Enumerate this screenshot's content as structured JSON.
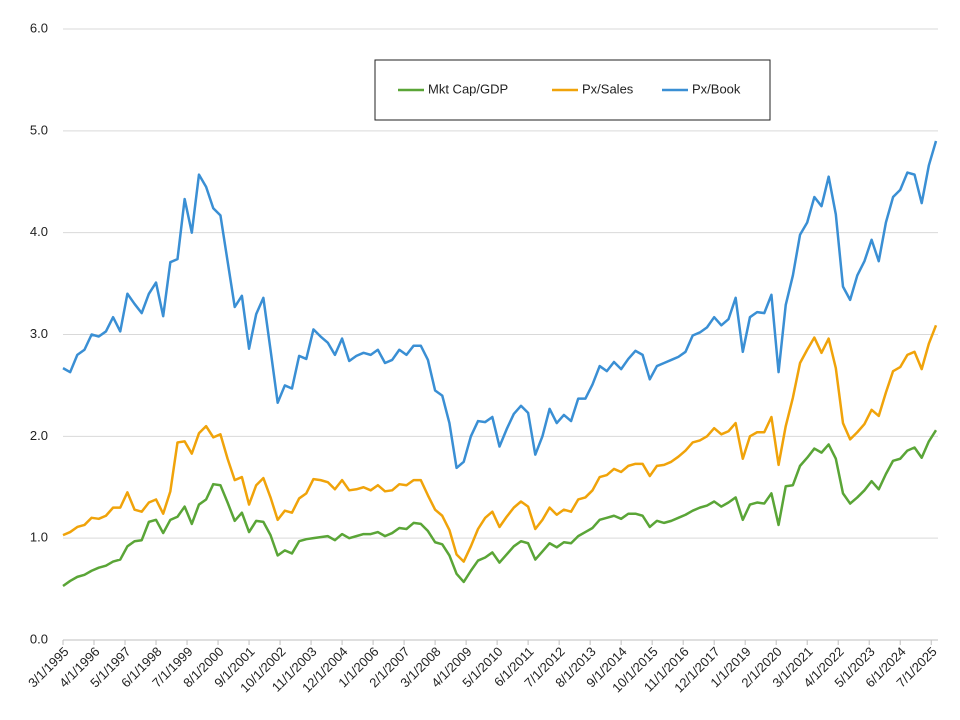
{
  "chart_data": {
    "type": "line",
    "x": [
      "3/1/1995",
      "6/1/1995",
      "9/1/1995",
      "12/1/1995",
      "3/1/1996",
      "6/1/1996",
      "9/1/1996",
      "12/1/1996",
      "3/1/1997",
      "6/1/1997",
      "9/1/1997",
      "12/1/1997",
      "3/1/1998",
      "6/1/1998",
      "9/1/1998",
      "12/1/1998",
      "3/1/1999",
      "6/1/1999",
      "9/1/1999",
      "12/1/1999",
      "3/1/2000",
      "6/1/2000",
      "9/1/2000",
      "12/1/2000",
      "3/1/2001",
      "6/1/2001",
      "9/1/2001",
      "12/1/2001",
      "3/1/2002",
      "6/1/2002",
      "9/1/2002",
      "12/1/2002",
      "3/1/2003",
      "6/1/2003",
      "9/1/2003",
      "12/1/2003",
      "3/1/2004",
      "6/1/2004",
      "9/1/2004",
      "12/1/2004",
      "3/1/2005",
      "6/1/2005",
      "9/1/2005",
      "12/1/2005",
      "3/1/2006",
      "6/1/2006",
      "9/1/2006",
      "12/1/2006",
      "3/1/2007",
      "6/1/2007",
      "9/1/2007",
      "12/1/2007",
      "3/1/2008",
      "6/1/2008",
      "9/1/2008",
      "12/1/2008",
      "3/1/2009",
      "6/1/2009",
      "9/1/2009",
      "12/1/2009",
      "3/1/2010",
      "6/1/2010",
      "9/1/2010",
      "12/1/2010",
      "3/1/2011",
      "6/1/2011",
      "9/1/2011",
      "12/1/2011",
      "3/1/2012",
      "6/1/2012",
      "9/1/2012",
      "12/1/2012",
      "3/1/2013",
      "6/1/2013",
      "9/1/2013",
      "12/1/2013",
      "3/1/2014",
      "6/1/2014",
      "9/1/2014",
      "12/1/2014",
      "3/1/2015",
      "6/1/2015",
      "9/1/2015",
      "12/1/2015",
      "3/1/2016",
      "6/1/2016",
      "9/1/2016",
      "12/1/2016",
      "3/1/2017",
      "6/1/2017",
      "9/1/2017",
      "12/1/2017",
      "3/1/2018",
      "6/1/2018",
      "9/1/2018",
      "12/1/2018",
      "3/1/2019",
      "6/1/2019",
      "9/1/2019",
      "12/1/2019",
      "3/1/2020",
      "6/1/2020",
      "9/1/2020",
      "12/1/2020",
      "3/1/2021",
      "6/1/2021",
      "9/1/2021",
      "12/1/2021",
      "3/1/2022",
      "6/1/2022",
      "9/1/2022",
      "12/1/2022",
      "3/1/2023",
      "6/1/2023",
      "9/1/2023",
      "12/1/2023",
      "3/1/2024",
      "6/1/2024",
      "9/1/2024",
      "12/1/2024",
      "3/1/2025",
      "6/1/2025",
      "9/1/2025"
    ],
    "series": [
      {
        "name": "Mkt Cap/GDP",
        "color": "#5aa537",
        "values": [
          0.53,
          0.58,
          0.62,
          0.64,
          0.68,
          0.71,
          0.73,
          0.77,
          0.79,
          0.92,
          0.97,
          0.98,
          1.16,
          1.18,
          1.05,
          1.18,
          1.21,
          1.31,
          1.14,
          1.33,
          1.38,
          1.53,
          1.52,
          1.35,
          1.17,
          1.25,
          1.06,
          1.17,
          1.16,
          1.03,
          0.83,
          0.88,
          0.85,
          0.97,
          0.99,
          1.0,
          1.01,
          1.02,
          0.98,
          1.04,
          1.0,
          1.02,
          1.04,
          1.04,
          1.06,
          1.02,
          1.05,
          1.1,
          1.09,
          1.15,
          1.14,
          1.07,
          0.96,
          0.94,
          0.83,
          0.65,
          0.57,
          0.68,
          0.78,
          0.81,
          0.86,
          0.76,
          0.84,
          0.92,
          0.97,
          0.95,
          0.79,
          0.87,
          0.95,
          0.91,
          0.96,
          0.95,
          1.02,
          1.06,
          1.1,
          1.18,
          1.2,
          1.22,
          1.19,
          1.24,
          1.24,
          1.22,
          1.11,
          1.17,
          1.15,
          1.17,
          1.2,
          1.23,
          1.27,
          1.3,
          1.32,
          1.36,
          1.31,
          1.35,
          1.4,
          1.18,
          1.33,
          1.35,
          1.34,
          1.44,
          1.13,
          1.51,
          1.52,
          1.71,
          1.79,
          1.88,
          1.84,
          1.92,
          1.78,
          1.44,
          1.34,
          1.4,
          1.47,
          1.56,
          1.48,
          1.63,
          1.76,
          1.78,
          1.86,
          1.89,
          1.79,
          1.95,
          2.06
        ]
      },
      {
        "name": "Px/Sales",
        "color": "#f0a30a",
        "values": [
          1.03,
          1.06,
          1.11,
          1.13,
          1.2,
          1.19,
          1.22,
          1.3,
          1.3,
          1.45,
          1.28,
          1.26,
          1.35,
          1.38,
          1.24,
          1.46,
          1.94,
          1.95,
          1.83,
          2.03,
          2.1,
          1.99,
          2.02,
          1.78,
          1.57,
          1.6,
          1.33,
          1.52,
          1.59,
          1.4,
          1.18,
          1.27,
          1.25,
          1.39,
          1.44,
          1.58,
          1.57,
          1.55,
          1.48,
          1.57,
          1.47,
          1.48,
          1.5,
          1.47,
          1.52,
          1.46,
          1.47,
          1.53,
          1.52,
          1.57,
          1.57,
          1.42,
          1.28,
          1.22,
          1.08,
          0.84,
          0.77,
          0.92,
          1.09,
          1.2,
          1.26,
          1.11,
          1.21,
          1.3,
          1.36,
          1.31,
          1.09,
          1.18,
          1.3,
          1.23,
          1.28,
          1.26,
          1.38,
          1.4,
          1.47,
          1.6,
          1.62,
          1.68,
          1.65,
          1.71,
          1.73,
          1.73,
          1.61,
          1.71,
          1.72,
          1.75,
          1.8,
          1.86,
          1.94,
          1.96,
          2.0,
          2.08,
          2.02,
          2.05,
          2.13,
          1.78,
          2.0,
          2.04,
          2.04,
          2.19,
          1.72,
          2.1,
          2.38,
          2.72,
          2.85,
          2.97,
          2.82,
          2.96,
          2.67,
          2.13,
          1.97,
          2.04,
          2.12,
          2.26,
          2.2,
          2.43,
          2.64,
          2.68,
          2.8,
          2.83,
          2.66,
          2.91,
          3.09
        ]
      },
      {
        "name": "Px/Book",
        "color": "#3a8fd4",
        "values": [
          2.67,
          2.63,
          2.8,
          2.85,
          3.0,
          2.98,
          3.03,
          3.17,
          3.03,
          3.4,
          3.3,
          3.21,
          3.4,
          3.51,
          3.18,
          3.71,
          3.74,
          4.33,
          4.0,
          4.57,
          4.45,
          4.24,
          4.17,
          3.72,
          3.27,
          3.38,
          2.86,
          3.2,
          3.36,
          2.85,
          2.33,
          2.5,
          2.47,
          2.79,
          2.76,
          3.05,
          2.98,
          2.92,
          2.8,
          2.96,
          2.74,
          2.79,
          2.82,
          2.8,
          2.85,
          2.72,
          2.75,
          2.85,
          2.8,
          2.89,
          2.89,
          2.75,
          2.45,
          2.4,
          2.13,
          1.69,
          1.75,
          2.0,
          2.15,
          2.14,
          2.19,
          1.9,
          2.07,
          2.22,
          2.3,
          2.23,
          1.82,
          2.0,
          2.27,
          2.13,
          2.21,
          2.15,
          2.37,
          2.37,
          2.51,
          2.69,
          2.64,
          2.73,
          2.66,
          2.76,
          2.84,
          2.8,
          2.56,
          2.69,
          2.72,
          2.75,
          2.78,
          2.83,
          2.99,
          3.02,
          3.07,
          3.17,
          3.09,
          3.15,
          3.36,
          2.83,
          3.17,
          3.22,
          3.21,
          3.39,
          2.63,
          3.29,
          3.58,
          3.98,
          4.1,
          4.35,
          4.26,
          4.55,
          4.18,
          3.47,
          3.34,
          3.58,
          3.72,
          3.93,
          3.72,
          4.1,
          4.35,
          4.42,
          4.59,
          4.57,
          4.29,
          4.66,
          4.9
        ]
      }
    ],
    "xlim": [
      "3/1/1995",
      "9/1/2025"
    ],
    "xticks": [
      "3/1/1995",
      "4/1/1996",
      "5/1/1997",
      "6/1/1998",
      "7/1/1999",
      "8/1/2000",
      "9/1/2001",
      "10/1/2002",
      "11/1/2003",
      "12/1/2004",
      "1/1/2006",
      "2/1/2007",
      "3/1/2008",
      "4/1/2009",
      "5/1/2010",
      "6/1/2011",
      "7/1/2012",
      "8/1/2013",
      "9/1/2014",
      "10/1/2015",
      "11/1/2016",
      "12/1/2017",
      "1/1/2019",
      "2/1/2020",
      "3/1/2021",
      "4/1/2022",
      "5/1/2023",
      "6/1/2024",
      "7/1/2025"
    ],
    "ylim": [
      0,
      6
    ],
    "yticks": [
      {
        "value": 0,
        "label": "0.0"
      },
      {
        "value": 1,
        "label": "1.0"
      },
      {
        "value": 2,
        "label": "2.0"
      },
      {
        "value": 3,
        "label": "3.0"
      },
      {
        "value": 4,
        "label": "4.0"
      },
      {
        "value": 5,
        "label": "5.0"
      },
      {
        "value": 6,
        "label": "6.0"
      }
    ],
    "grid": true
  }
}
